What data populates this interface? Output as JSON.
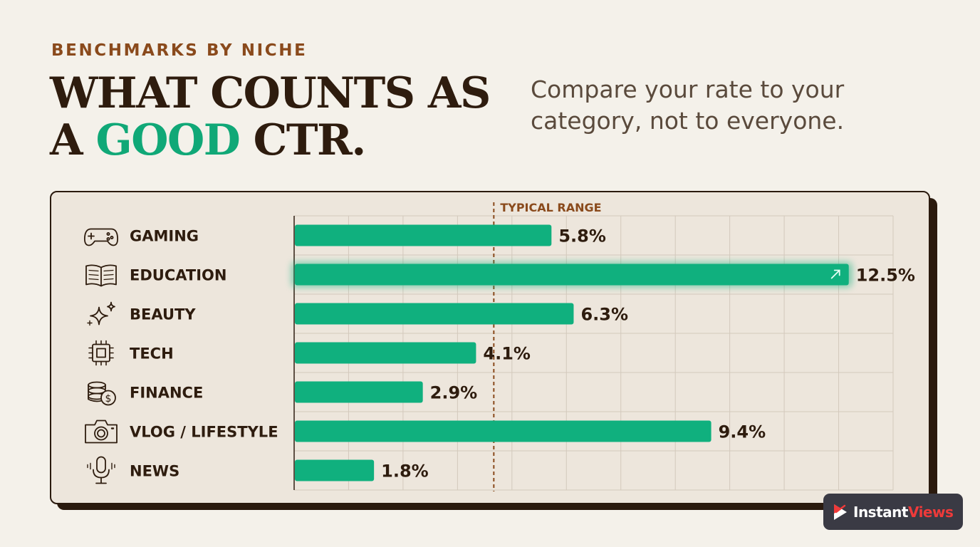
{
  "header": {
    "eyebrow": "BENCHMARKS BY NICHE",
    "title_line1": "WHAT COUNTS AS",
    "title_line2_pre": "A ",
    "title_line2_accent": "GOOD",
    "title_line2_post": " CTR.",
    "subtitle_line1": "Compare your rate to your",
    "subtitle_line2": "category, not to everyone."
  },
  "colors": {
    "bar": "#10b07e",
    "accent": "#10a877",
    "eyebrow": "#8a4a1c",
    "ink": "#2e1c0e",
    "reference_line": "#8a4a1c"
  },
  "chart_data": {
    "type": "bar",
    "orientation": "horizontal",
    "categories": [
      "GAMING",
      "EDUCATION",
      "BEAUTY",
      "TECH",
      "FINANCE",
      "VLOG / LIFESTYLE",
      "NEWS"
    ],
    "category_icons": [
      "gamepad-icon",
      "book-icon",
      "sparkles-icon",
      "chip-icon",
      "coins-icon",
      "camera-icon",
      "microphone-icon"
    ],
    "values": [
      5.8,
      12.5,
      6.3,
      4.1,
      2.9,
      9.4,
      1.8
    ],
    "value_labels": [
      "5.8%",
      "12.5%",
      "6.3%",
      "4.1%",
      "2.9%",
      "9.4%",
      "1.8%"
    ],
    "highlighted_category": "EDUCATION",
    "highlight_icon": "arrow-up-right-icon",
    "reference_line": {
      "value": 4.5,
      "label": "TYPICAL RANGE"
    },
    "xlim": [
      0,
      13.5
    ],
    "grid": true
  },
  "brand": {
    "name_part1": "Instant",
    "name_part2": "Views"
  }
}
